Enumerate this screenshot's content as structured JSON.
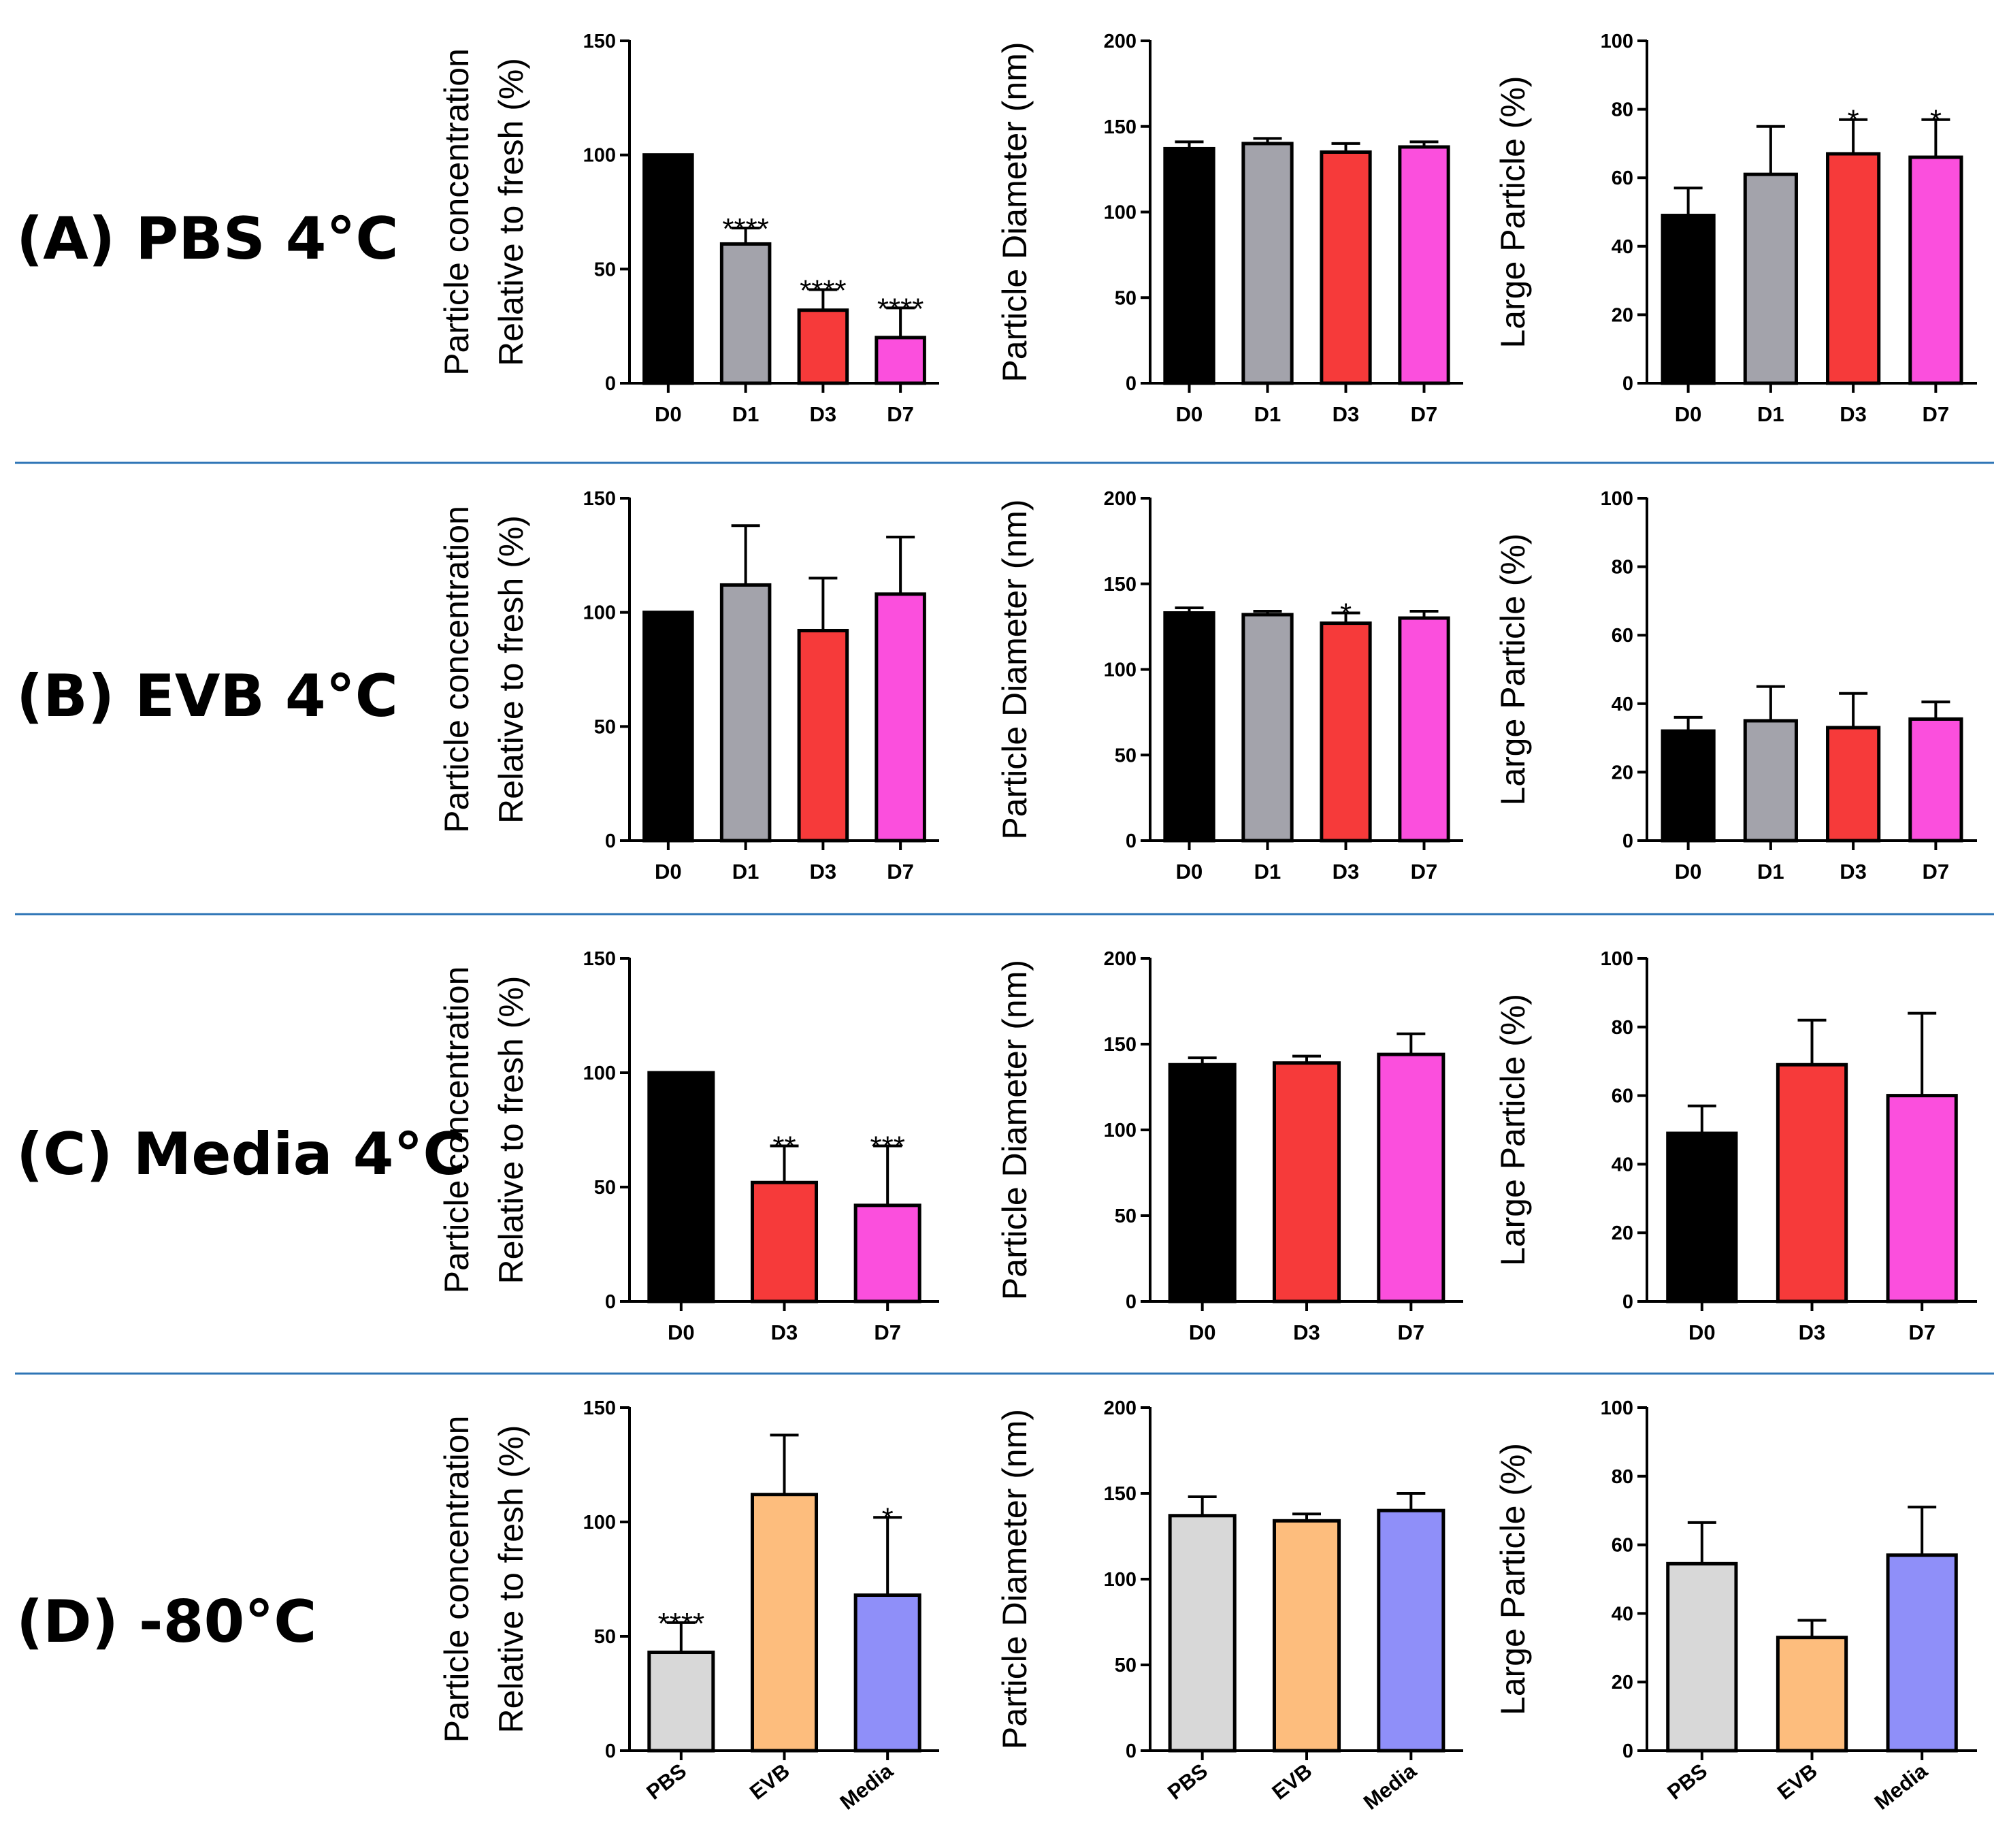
{
  "rows": [
    {
      "label": "(A) PBS 4°C"
    },
    {
      "label": "(B) EVB 4°C"
    },
    {
      "label": "(C) Media 4°C"
    },
    {
      "label": "(D) -80°C"
    }
  ],
  "colors": {
    "D0": "#000000",
    "D1": "#a3a3ab",
    "D3": "#f63a3a",
    "D7": "#fb4fdd",
    "PBS": "#d8d8d8",
    "EVB": "#fdbd7d",
    "Media": "#8f8ff9",
    "divider": "#2e75b6"
  },
  "chart_data": [
    {
      "id": "A1",
      "row": 0,
      "col": 0,
      "type": "bar",
      "ylabel_lines": [
        "Particle concentration",
        "Relative to fresh (%)"
      ],
      "ylim": [
        0,
        150
      ],
      "yticks": [
        0,
        50,
        100,
        150
      ],
      "categories": [
        "D0",
        "D1",
        "D3",
        "D7"
      ],
      "values": [
        100,
        61,
        32,
        20
      ],
      "errors": [
        0,
        7,
        9,
        13
      ],
      "significance": [
        "",
        "****",
        "****",
        "****"
      ]
    },
    {
      "id": "A2",
      "row": 0,
      "col": 1,
      "type": "bar",
      "ylabel_lines": [
        "Particle Diameter (nm)"
      ],
      "ylim": [
        0,
        200
      ],
      "yticks": [
        0,
        50,
        100,
        150,
        200
      ],
      "categories": [
        "D0",
        "D1",
        "D3",
        "D7"
      ],
      "values": [
        137,
        140,
        135,
        138
      ],
      "errors": [
        4,
        3,
        5,
        3
      ],
      "significance": [
        "",
        "",
        "",
        ""
      ]
    },
    {
      "id": "A3",
      "row": 0,
      "col": 2,
      "type": "bar",
      "ylabel_lines": [
        "Large Particle (%)"
      ],
      "ylim": [
        0,
        100
      ],
      "yticks": [
        0,
        20,
        40,
        60,
        80,
        100
      ],
      "categories": [
        "D0",
        "D1",
        "D3",
        "D7"
      ],
      "values": [
        49,
        61,
        67,
        66
      ],
      "errors": [
        8,
        14,
        10,
        11
      ],
      "significance": [
        "",
        "",
        "*",
        "*"
      ]
    },
    {
      "id": "B1",
      "row": 1,
      "col": 0,
      "type": "bar",
      "ylabel_lines": [
        "Particle concentration",
        "Relative to fresh (%)"
      ],
      "ylim": [
        0,
        150
      ],
      "yticks": [
        0,
        50,
        100,
        150
      ],
      "categories": [
        "D0",
        "D1",
        "D3",
        "D7"
      ],
      "values": [
        100,
        112,
        92,
        108
      ],
      "errors": [
        0,
        26,
        23,
        25
      ],
      "significance": [
        "",
        "",
        "",
        ""
      ]
    },
    {
      "id": "B2",
      "row": 1,
      "col": 1,
      "type": "bar",
      "ylabel_lines": [
        "Particle Diameter (nm)"
      ],
      "ylim": [
        0,
        200
      ],
      "yticks": [
        0,
        50,
        100,
        150,
        200
      ],
      "categories": [
        "D0",
        "D1",
        "D3",
        "D7"
      ],
      "values": [
        133,
        132,
        127,
        130
      ],
      "errors": [
        3,
        2,
        6,
        4
      ],
      "significance": [
        "",
        "",
        "*",
        ""
      ]
    },
    {
      "id": "B3",
      "row": 1,
      "col": 2,
      "type": "bar",
      "ylabel_lines": [
        "Large Particle (%)"
      ],
      "ylim": [
        0,
        100
      ],
      "yticks": [
        0,
        20,
        40,
        60,
        80,
        100
      ],
      "categories": [
        "D0",
        "D1",
        "D3",
        "D7"
      ],
      "values": [
        32,
        35,
        33,
        35.5
      ],
      "errors": [
        4,
        10,
        10,
        5
      ],
      "significance": [
        "",
        "",
        "",
        ""
      ]
    },
    {
      "id": "C1",
      "row": 2,
      "col": 0,
      "type": "bar",
      "ylabel_lines": [
        "Particle concentration",
        "Relative to fresh (%)"
      ],
      "ylim": [
        0,
        150
      ],
      "yticks": [
        0,
        50,
        100,
        150
      ],
      "categories": [
        "D0",
        "D3",
        "D7"
      ],
      "values": [
        100,
        52,
        42
      ],
      "errors": [
        0,
        16,
        26
      ],
      "significance": [
        "",
        "**",
        "***"
      ]
    },
    {
      "id": "C2",
      "row": 2,
      "col": 1,
      "type": "bar",
      "ylabel_lines": [
        "Particle Diameter (nm)"
      ],
      "ylim": [
        0,
        200
      ],
      "yticks": [
        0,
        50,
        100,
        150,
        200
      ],
      "categories": [
        "D0",
        "D3",
        "D7"
      ],
      "values": [
        138,
        139,
        144
      ],
      "errors": [
        4,
        4,
        12
      ],
      "significance": [
        "",
        "",
        ""
      ]
    },
    {
      "id": "C3",
      "row": 2,
      "col": 2,
      "type": "bar",
      "ylabel_lines": [
        "Large Particle (%)"
      ],
      "ylim": [
        0,
        100
      ],
      "yticks": [
        0,
        20,
        40,
        60,
        80,
        100
      ],
      "categories": [
        "D0",
        "D3",
        "D7"
      ],
      "values": [
        49,
        69,
        60
      ],
      "errors": [
        8,
        13,
        24
      ],
      "significance": [
        "",
        "",
        ""
      ]
    },
    {
      "id": "D1",
      "row": 3,
      "col": 0,
      "type": "bar",
      "ylabel_lines": [
        "Particle concentration",
        "Relative to fresh (%)"
      ],
      "ylim": [
        0,
        150
      ],
      "yticks": [
        0,
        50,
        100,
        150
      ],
      "categories": [
        "PBS",
        "EVB",
        "Media"
      ],
      "values": [
        43,
        112,
        68
      ],
      "errors": [
        13,
        26,
        34
      ],
      "significance": [
        "****",
        "",
        "*"
      ]
    },
    {
      "id": "D2",
      "row": 3,
      "col": 1,
      "type": "bar",
      "ylabel_lines": [
        "Particle Diameter (nm)"
      ],
      "ylim": [
        0,
        200
      ],
      "yticks": [
        0,
        50,
        100,
        150,
        200
      ],
      "categories": [
        "PBS",
        "EVB",
        "Media"
      ],
      "values": [
        137,
        134,
        140
      ],
      "errors": [
        11,
        4,
        10
      ],
      "significance": [
        "",
        "",
        ""
      ]
    },
    {
      "id": "D3",
      "row": 3,
      "col": 2,
      "type": "bar",
      "ylabel_lines": [
        "Large Particle (%)"
      ],
      "ylim": [
        0,
        100
      ],
      "yticks": [
        0,
        20,
        40,
        60,
        80,
        100
      ],
      "categories": [
        "PBS",
        "EVB",
        "Media"
      ],
      "values": [
        54.5,
        33,
        57
      ],
      "errors": [
        12,
        5,
        14
      ],
      "significance": [
        "",
        "",
        ""
      ]
    }
  ]
}
